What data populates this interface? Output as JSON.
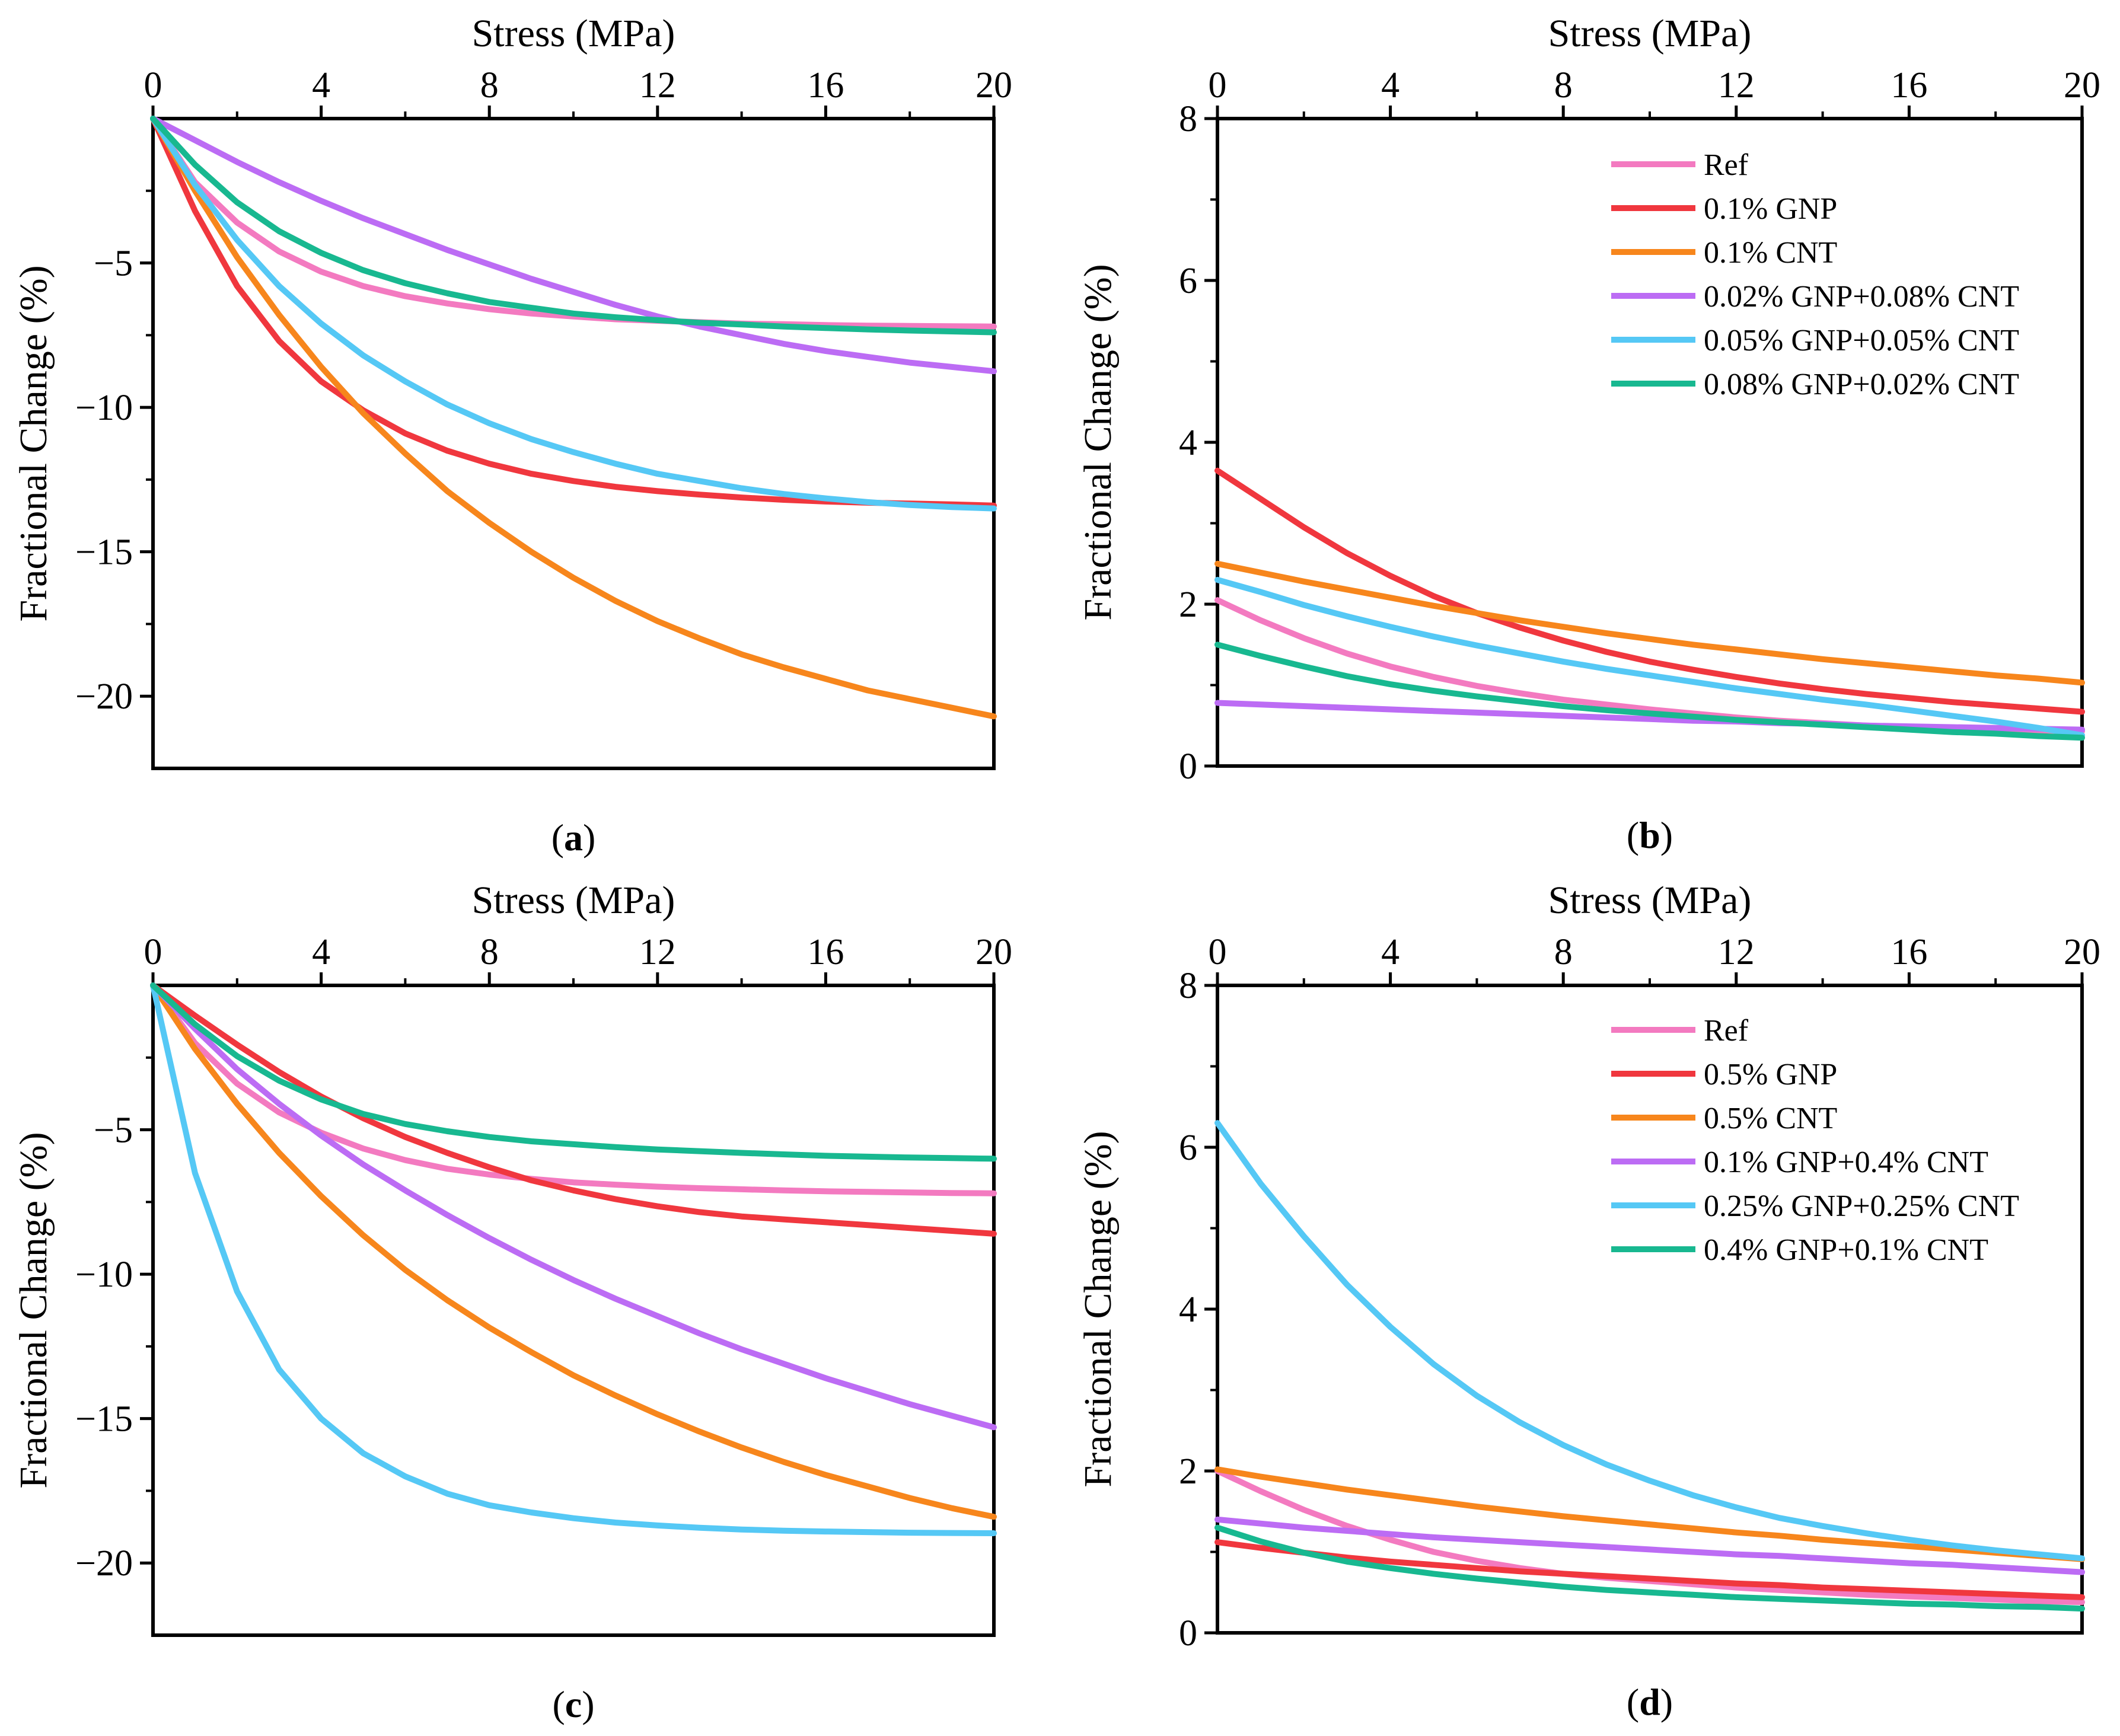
{
  "figure": {
    "title": ""
  },
  "colors": {
    "Ref": "#f37ac0",
    "GNP": "#f0373e",
    "CNT": "#f7861c",
    "purple": "#bc6cf4",
    "blue": "#55c8f5",
    "green": "#18b890"
  },
  "chart_data": [
    {
      "id": "a",
      "panel_label": "a",
      "type": "line",
      "title": "",
      "xlabel": "Stress (MPa)",
      "ylabel": "Fractional Change (%)",
      "xlim": [
        0,
        20
      ],
      "ylim": [
        -22.5,
        0
      ],
      "xticks": [
        0,
        4,
        8,
        12,
        16,
        20
      ],
      "xtick_labels": [
        "0",
        "4",
        "8",
        "12",
        "16",
        "20"
      ],
      "yticks": [
        -5,
        -10,
        -15,
        -20
      ],
      "ytick_labels": [
        "−5",
        "−10",
        "−15",
        "−20"
      ],
      "legend": false,
      "x": [
        0,
        1,
        2,
        3,
        4,
        5,
        6,
        7,
        8,
        9,
        10,
        11,
        12,
        13,
        14,
        15,
        16,
        17,
        18,
        19,
        20
      ],
      "series": [
        {
          "name": "Ref",
          "color": "Ref",
          "values": [
            0,
            -2.2,
            -3.6,
            -4.6,
            -5.3,
            -5.8,
            -6.15,
            -6.4,
            -6.6,
            -6.75,
            -6.85,
            -6.95,
            -7.0,
            -7.05,
            -7.1,
            -7.12,
            -7.15,
            -7.17,
            -7.18,
            -7.19,
            -7.2
          ]
        },
        {
          "name": "0.1% GNP",
          "color": "GNP",
          "values": [
            0,
            -3.2,
            -5.8,
            -7.7,
            -9.1,
            -10.1,
            -10.9,
            -11.5,
            -11.95,
            -12.3,
            -12.55,
            -12.75,
            -12.9,
            -13.02,
            -13.12,
            -13.2,
            -13.26,
            -13.3,
            -13.33,
            -13.36,
            -13.4
          ]
        },
        {
          "name": "0.1% CNT",
          "color": "CNT",
          "values": [
            0,
            -2.5,
            -4.8,
            -6.8,
            -8.6,
            -10.2,
            -11.6,
            -12.9,
            -14.0,
            -15.0,
            -15.9,
            -16.7,
            -17.4,
            -18.0,
            -18.55,
            -19.0,
            -19.4,
            -19.8,
            -20.1,
            -20.4,
            -20.7
          ]
        },
        {
          "name": "0.02% GNP+0.08% CNT",
          "color": "purple",
          "values": [
            0,
            -0.75,
            -1.5,
            -2.2,
            -2.85,
            -3.45,
            -4.0,
            -4.55,
            -5.05,
            -5.55,
            -6.0,
            -6.45,
            -6.85,
            -7.2,
            -7.5,
            -7.8,
            -8.05,
            -8.25,
            -8.45,
            -8.6,
            -8.75
          ]
        },
        {
          "name": "0.05% GNP+0.05% CNT",
          "color": "blue",
          "values": [
            0,
            -2.3,
            -4.2,
            -5.8,
            -7.1,
            -8.2,
            -9.1,
            -9.9,
            -10.55,
            -11.1,
            -11.55,
            -11.95,
            -12.3,
            -12.55,
            -12.8,
            -13.0,
            -13.15,
            -13.28,
            -13.38,
            -13.45,
            -13.5
          ]
        },
        {
          "name": "0.08% GNP+0.02% CNT",
          "color": "green",
          "values": [
            0,
            -1.6,
            -2.9,
            -3.9,
            -4.65,
            -5.25,
            -5.7,
            -6.05,
            -6.35,
            -6.55,
            -6.75,
            -6.88,
            -6.98,
            -7.07,
            -7.13,
            -7.2,
            -7.25,
            -7.3,
            -7.34,
            -7.37,
            -7.4
          ]
        }
      ]
    },
    {
      "id": "b",
      "panel_label": "b",
      "type": "line",
      "title": "",
      "xlabel": "Stress (MPa)",
      "ylabel": "Fractional Change (%)",
      "xlim": [
        0,
        20
      ],
      "ylim": [
        0,
        8
      ],
      "xticks": [
        0,
        4,
        8,
        12,
        16,
        20
      ],
      "xtick_labels": [
        "0",
        "4",
        "8",
        "12",
        "16",
        "20"
      ],
      "yticks": [
        0,
        2,
        4,
        6,
        8
      ],
      "ytick_labels": [
        "0",
        "2",
        "4",
        "6",
        "8"
      ],
      "legend": true,
      "legend_position": "top-right",
      "x": [
        0,
        1,
        2,
        3,
        4,
        5,
        6,
        7,
        8,
        9,
        10,
        11,
        12,
        13,
        14,
        15,
        16,
        17,
        18,
        19,
        20
      ],
      "series": [
        {
          "name": "Ref",
          "color": "Ref",
          "values": [
            2.05,
            1.8,
            1.58,
            1.39,
            1.23,
            1.1,
            0.99,
            0.9,
            0.82,
            0.76,
            0.7,
            0.65,
            0.6,
            0.56,
            0.53,
            0.5,
            0.48,
            0.46,
            0.45,
            0.44,
            0.43
          ]
        },
        {
          "name": "0.1% GNP",
          "color": "GNP",
          "values": [
            3.65,
            3.3,
            2.95,
            2.63,
            2.35,
            2.1,
            1.89,
            1.71,
            1.55,
            1.41,
            1.29,
            1.19,
            1.1,
            1.02,
            0.95,
            0.89,
            0.84,
            0.79,
            0.75,
            0.71,
            0.67
          ]
        },
        {
          "name": "0.1% CNT",
          "color": "CNT",
          "values": [
            2.5,
            2.39,
            2.28,
            2.18,
            2.08,
            1.98,
            1.89,
            1.8,
            1.72,
            1.64,
            1.57,
            1.5,
            1.44,
            1.38,
            1.32,
            1.27,
            1.22,
            1.17,
            1.12,
            1.08,
            1.03
          ]
        },
        {
          "name": "0.02% GNP+0.08% CNT",
          "color": "purple",
          "values": [
            0.78,
            0.76,
            0.74,
            0.72,
            0.7,
            0.68,
            0.66,
            0.64,
            0.62,
            0.6,
            0.58,
            0.56,
            0.55,
            0.53,
            0.52,
            0.5,
            0.49,
            0.48,
            0.47,
            0.46,
            0.45
          ]
        },
        {
          "name": "0.05% GNP+0.05% CNT",
          "color": "blue",
          "values": [
            2.3,
            2.15,
            1.99,
            1.85,
            1.72,
            1.6,
            1.49,
            1.39,
            1.29,
            1.2,
            1.12,
            1.04,
            0.96,
            0.89,
            0.82,
            0.76,
            0.69,
            0.62,
            0.55,
            0.47,
            0.38
          ]
        },
        {
          "name": "0.08% GNP+0.02% CNT",
          "color": "green",
          "values": [
            1.5,
            1.36,
            1.23,
            1.11,
            1.01,
            0.93,
            0.86,
            0.8,
            0.74,
            0.69,
            0.65,
            0.61,
            0.57,
            0.54,
            0.51,
            0.48,
            0.45,
            0.42,
            0.4,
            0.37,
            0.35
          ]
        }
      ]
    },
    {
      "id": "c",
      "panel_label": "c",
      "type": "line",
      "title": "",
      "xlabel": "Stress (MPa)",
      "ylabel": "Fractional Change (%)",
      "xlim": [
        0,
        20
      ],
      "ylim": [
        -22.5,
        0
      ],
      "xticks": [
        0,
        4,
        8,
        12,
        16,
        20
      ],
      "xtick_labels": [
        "0",
        "4",
        "8",
        "12",
        "16",
        "20"
      ],
      "yticks": [
        -5,
        -10,
        -15,
        -20
      ],
      "ytick_labels": [
        "−5",
        "−10",
        "−15",
        "−20"
      ],
      "legend": false,
      "x": [
        0,
        1,
        2,
        3,
        4,
        5,
        6,
        7,
        8,
        9,
        10,
        11,
        12,
        13,
        14,
        15,
        16,
        17,
        18,
        19,
        20
      ],
      "series": [
        {
          "name": "Ref",
          "color": "Ref",
          "values": [
            0,
            -2.0,
            -3.4,
            -4.4,
            -5.1,
            -5.65,
            -6.05,
            -6.35,
            -6.55,
            -6.7,
            -6.82,
            -6.9,
            -6.97,
            -7.02,
            -7.06,
            -7.1,
            -7.13,
            -7.15,
            -7.17,
            -7.19,
            -7.2
          ]
        },
        {
          "name": "0.5% GNP",
          "color": "GNP",
          "values": [
            0,
            -1.05,
            -2.05,
            -3.0,
            -3.85,
            -4.6,
            -5.25,
            -5.8,
            -6.3,
            -6.75,
            -7.1,
            -7.4,
            -7.65,
            -7.85,
            -8.0,
            -8.1,
            -8.2,
            -8.3,
            -8.4,
            -8.5,
            -8.6
          ]
        },
        {
          "name": "0.5% CNT",
          "color": "CNT",
          "values": [
            0,
            -2.2,
            -4.1,
            -5.8,
            -7.3,
            -8.65,
            -9.85,
            -10.9,
            -11.85,
            -12.7,
            -13.5,
            -14.2,
            -14.85,
            -15.45,
            -16.0,
            -16.5,
            -16.95,
            -17.35,
            -17.75,
            -18.1,
            -18.4
          ]
        },
        {
          "name": "0.1% GNP+0.4% CNT",
          "color": "purple",
          "values": [
            0,
            -1.5,
            -2.9,
            -4.1,
            -5.2,
            -6.2,
            -7.1,
            -7.95,
            -8.75,
            -9.5,
            -10.2,
            -10.85,
            -11.45,
            -12.05,
            -12.6,
            -13.1,
            -13.6,
            -14.05,
            -14.5,
            -14.9,
            -15.3
          ]
        },
        {
          "name": "0.25% GNP+0.25% CNT",
          "color": "blue",
          "values": [
            0,
            -6.5,
            -10.6,
            -13.3,
            -15.0,
            -16.2,
            -17.0,
            -17.6,
            -18.0,
            -18.25,
            -18.45,
            -18.6,
            -18.7,
            -18.78,
            -18.84,
            -18.88,
            -18.91,
            -18.93,
            -18.95,
            -18.96,
            -18.97
          ]
        },
        {
          "name": "0.4% GNP+0.1% CNT",
          "color": "green",
          "values": [
            0,
            -1.35,
            -2.45,
            -3.3,
            -3.95,
            -4.45,
            -4.8,
            -5.05,
            -5.25,
            -5.4,
            -5.5,
            -5.6,
            -5.68,
            -5.74,
            -5.8,
            -5.85,
            -5.9,
            -5.93,
            -5.96,
            -5.98,
            -6.0
          ]
        }
      ]
    },
    {
      "id": "d",
      "panel_label": "d",
      "type": "line",
      "title": "",
      "xlabel": "Stress (MPa)",
      "ylabel": "Fractional Change (%)",
      "xlim": [
        0,
        20
      ],
      "ylim": [
        0,
        8
      ],
      "xticks": [
        0,
        4,
        8,
        12,
        16,
        20
      ],
      "xtick_labels": [
        "0",
        "4",
        "8",
        "12",
        "16",
        "20"
      ],
      "yticks": [
        0,
        2,
        4,
        6,
        8
      ],
      "ytick_labels": [
        "0",
        "2",
        "4",
        "6",
        "8"
      ],
      "legend": true,
      "legend_position": "top-right",
      "x": [
        0,
        1,
        2,
        3,
        4,
        5,
        6,
        7,
        8,
        9,
        10,
        11,
        12,
        13,
        14,
        15,
        16,
        17,
        18,
        19,
        20
      ],
      "series": [
        {
          "name": "Ref",
          "color": "Ref",
          "values": [
            2.0,
            1.75,
            1.52,
            1.32,
            1.15,
            1.0,
            0.89,
            0.8,
            0.73,
            0.68,
            0.64,
            0.6,
            0.56,
            0.53,
            0.5,
            0.47,
            0.45,
            0.43,
            0.41,
            0.39,
            0.38
          ]
        },
        {
          "name": "0.5% GNP",
          "color": "GNP",
          "values": [
            1.12,
            1.05,
            0.99,
            0.93,
            0.88,
            0.84,
            0.8,
            0.76,
            0.73,
            0.7,
            0.67,
            0.64,
            0.61,
            0.59,
            0.56,
            0.54,
            0.52,
            0.5,
            0.48,
            0.46,
            0.44
          ]
        },
        {
          "name": "0.5% CNT",
          "color": "CNT",
          "values": [
            2.02,
            1.93,
            1.85,
            1.77,
            1.7,
            1.63,
            1.56,
            1.5,
            1.44,
            1.39,
            1.34,
            1.29,
            1.24,
            1.2,
            1.15,
            1.11,
            1.07,
            1.03,
            0.99,
            0.95,
            0.91
          ]
        },
        {
          "name": "0.1% GNP+0.4% CNT",
          "color": "purple",
          "values": [
            1.4,
            1.35,
            1.3,
            1.26,
            1.22,
            1.18,
            1.15,
            1.12,
            1.09,
            1.06,
            1.03,
            1.0,
            0.97,
            0.95,
            0.92,
            0.89,
            0.86,
            0.84,
            0.81,
            0.78,
            0.75
          ]
        },
        {
          "name": "0.25% GNP+0.25% CNT",
          "color": "blue",
          "values": [
            6.3,
            5.55,
            4.9,
            4.3,
            3.78,
            3.32,
            2.93,
            2.6,
            2.32,
            2.08,
            1.88,
            1.7,
            1.55,
            1.42,
            1.32,
            1.23,
            1.15,
            1.08,
            1.02,
            0.97,
            0.92
          ]
        },
        {
          "name": "0.4% GNP+0.1% CNT",
          "color": "green",
          "values": [
            1.3,
            1.13,
            0.99,
            0.88,
            0.8,
            0.73,
            0.67,
            0.62,
            0.57,
            0.53,
            0.5,
            0.47,
            0.44,
            0.42,
            0.4,
            0.38,
            0.36,
            0.35,
            0.33,
            0.32,
            0.3
          ]
        }
      ]
    }
  ]
}
